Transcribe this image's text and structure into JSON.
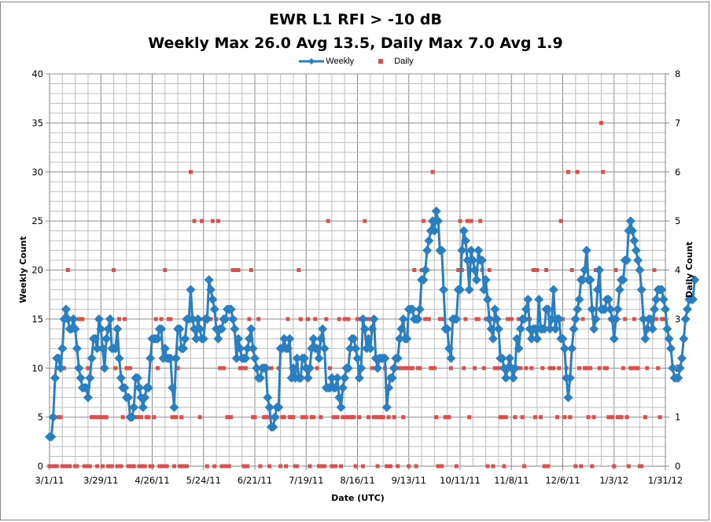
{
  "chart_data": {
    "type": "line",
    "title": "EWR L1 RFI > -10 dB",
    "subtitle": "Weekly Max 26.0 Avg 13.5,   Daily Max 7.0 Avg 1.9",
    "xlabel": "Date (UTC)",
    "ylabel": "Weekly Count",
    "y2label": "Daily Count",
    "x_start": "3/1/11",
    "x_end": "1/31/12",
    "x_range_days": [
      0,
      336
    ],
    "x_tick_labels": [
      "3/1/11",
      "3/29/11",
      "4/26/11",
      "5/24/11",
      "6/21/11",
      "7/19/11",
      "8/16/11",
      "9/13/11",
      "10/11/11",
      "11/8/11",
      "12/6/11",
      "1/3/12",
      "1/31/12"
    ],
    "ylim": [
      0,
      40
    ],
    "y_ticks": [
      0,
      5,
      10,
      15,
      20,
      25,
      30,
      35,
      40
    ],
    "y2lim": [
      0,
      8
    ],
    "y2_ticks": [
      0,
      1,
      2,
      3,
      4,
      5,
      6,
      7,
      8
    ],
    "grid": true,
    "legend": {
      "position": "top",
      "entries": [
        "Weekly",
        "Daily"
      ]
    },
    "colors": {
      "weekly": "#2a7fc1",
      "daily": "#d9504e"
    },
    "series": [
      {
        "name": "Weekly",
        "axis": "left",
        "style": "line-diamond",
        "day_offset": 0,
        "values": [
          3,
          3,
          5,
          9,
          11,
          11,
          10,
          12,
          15,
          16,
          15,
          14,
          14,
          15,
          14,
          12,
          10,
          9,
          8,
          8,
          8,
          7,
          9,
          11,
          13,
          13,
          12,
          15,
          14,
          12,
          10,
          13,
          14,
          15,
          12,
          12,
          12,
          14,
          11,
          9,
          8,
          8,
          7,
          7,
          5,
          5,
          6,
          9,
          9,
          8,
          7,
          6,
          7,
          8,
          8,
          11,
          13,
          13,
          13,
          13,
          14,
          14,
          11,
          12,
          11,
          11,
          11,
          8,
          6,
          11,
          14,
          14,
          12,
          12,
          13,
          15,
          15,
          18,
          15,
          14,
          13,
          15,
          14,
          13,
          13,
          15,
          15,
          19,
          18,
          17,
          16,
          14,
          13,
          14,
          14,
          15,
          15,
          16,
          16,
          16,
          15,
          14,
          11,
          13,
          12,
          11,
          11,
          11,
          12,
          13,
          14,
          12,
          11,
          10,
          9,
          9,
          10,
          10,
          10,
          7,
          6,
          4,
          4,
          5,
          6,
          6,
          12,
          12,
          13,
          12,
          12,
          13,
          9,
          10,
          9,
          11,
          9,
          9,
          11,
          11,
          10,
          9,
          10,
          12,
          13,
          12,
          12,
          11,
          13,
          14,
          12,
          8,
          8,
          8,
          9,
          8,
          8,
          9,
          7,
          6,
          8,
          9,
          10,
          10,
          12,
          13,
          13,
          12,
          11,
          9,
          10,
          15,
          14,
          12,
          13,
          12,
          14,
          15,
          11,
          10,
          11,
          11,
          11,
          11,
          6,
          8,
          9,
          9,
          10,
          11,
          11,
          13,
          14,
          15,
          13,
          13,
          16,
          16,
          16,
          15,
          15,
          15,
          16,
          19,
          19,
          20,
          22,
          23,
          24,
          25,
          24,
          26,
          25,
          22,
          22,
          18,
          14,
          14,
          12,
          11,
          15,
          15,
          15,
          18,
          18,
          22,
          24,
          23,
          21,
          18,
          22,
          21,
          20,
          19,
          22,
          21,
          21,
          18,
          19,
          17,
          15,
          14,
          13,
          16,
          15,
          14,
          11,
          11,
          10,
          9,
          10,
          11,
          10,
          9,
          10,
          13,
          12,
          14,
          15,
          15,
          16,
          17,
          14,
          13,
          14,
          14,
          13,
          17,
          14,
          14,
          14,
          16,
          16,
          14,
          15,
          18,
          14,
          15,
          15,
          13,
          13,
          12,
          9,
          7,
          9,
          12,
          14,
          15,
          16,
          17,
          19,
          19,
          20,
          22,
          19,
          19,
          16,
          14,
          15,
          18,
          20,
          16,
          16,
          16,
          17,
          17,
          16,
          15,
          13,
          15,
          16,
          18,
          19,
          19,
          21,
          21,
          24,
          25,
          24,
          23,
          22,
          21,
          20,
          18,
          15,
          13,
          14,
          15,
          15,
          14,
          16,
          17,
          18,
          18,
          18,
          17,
          16,
          14,
          13,
          12,
          10,
          9,
          9,
          9,
          10,
          11,
          13,
          15,
          16,
          17,
          17,
          17,
          19
        ]
      },
      {
        "name": "Daily",
        "axis": "right",
        "style": "square-marker",
        "day_offset": 0,
        "values": [
          0,
          0,
          1,
          0,
          0,
          1,
          1,
          0,
          2,
          0,
          4,
          0,
          3,
          3,
          0,
          0,
          3,
          3,
          3,
          0,
          0,
          2,
          0,
          1,
          1,
          1,
          0,
          1,
          1,
          0,
          1,
          1,
          0,
          3,
          0,
          4,
          2,
          0,
          3,
          0,
          1,
          3,
          2,
          0,
          2,
          0,
          0,
          1,
          1,
          0,
          1,
          0,
          0,
          1,
          1,
          0,
          0,
          1,
          3,
          2,
          0,
          3,
          0,
          4,
          0,
          3,
          3,
          1,
          0,
          1,
          2,
          0,
          1,
          0,
          3,
          0,
          3,
          6,
          3,
          5,
          3,
          3,
          1,
          5,
          3,
          3,
          0,
          3,
          3,
          5,
          0,
          3,
          5,
          2,
          0,
          2,
          0,
          1,
          0,
          1,
          4,
          3,
          4,
          4,
          2,
          2,
          0,
          2,
          0,
          3,
          4,
          1,
          1,
          2,
          3,
          0,
          2,
          1,
          1,
          1,
          0,
          2,
          1,
          1,
          1,
          2,
          0,
          1,
          1,
          0,
          3,
          1,
          1,
          1,
          0,
          0,
          4,
          3,
          1,
          2,
          1,
          3,
          0,
          1,
          1,
          3,
          2,
          0,
          1,
          0,
          0,
          3,
          5,
          2,
          0,
          1,
          0,
          1,
          3,
          0,
          1,
          3,
          1,
          3,
          1,
          1,
          1,
          0,
          3,
          1,
          3,
          0,
          5,
          3,
          1,
          3,
          2,
          1,
          1,
          0,
          1,
          1,
          1,
          2,
          0,
          1,
          0,
          2,
          1,
          2,
          0,
          2,
          2,
          1,
          2,
          2,
          0,
          2,
          2,
          4,
          0,
          2,
          2,
          4,
          5,
          3,
          4,
          3,
          2,
          6,
          2,
          1,
          0,
          3,
          0,
          3,
          1,
          1,
          1,
          2,
          3,
          3,
          0,
          4,
          5,
          4,
          2,
          3,
          5,
          1,
          5,
          4,
          2,
          3,
          3,
          5,
          4,
          2,
          3,
          0,
          4,
          3,
          0,
          2,
          3,
          2,
          1,
          1,
          0,
          1,
          3,
          2,
          3,
          2,
          1,
          2,
          3,
          2,
          1,
          0,
          2,
          3,
          3,
          2,
          4,
          1,
          4,
          3,
          1,
          2,
          0,
          4,
          0,
          2,
          3,
          2,
          3,
          1,
          2,
          5,
          3,
          1,
          2,
          6,
          1,
          4,
          3,
          0,
          6,
          2,
          0,
          3,
          2,
          2,
          1,
          2,
          0,
          1,
          4,
          4,
          2,
          7,
          6,
          2,
          2,
          1,
          3,
          1,
          0,
          4,
          1,
          1,
          1,
          2,
          3,
          1,
          0,
          2,
          2,
          3,
          2,
          2,
          0,
          0,
          3,
          1,
          2,
          3,
          3,
          3,
          4,
          3,
          2,
          1,
          3,
          3,
          3
        ]
      }
    ]
  }
}
